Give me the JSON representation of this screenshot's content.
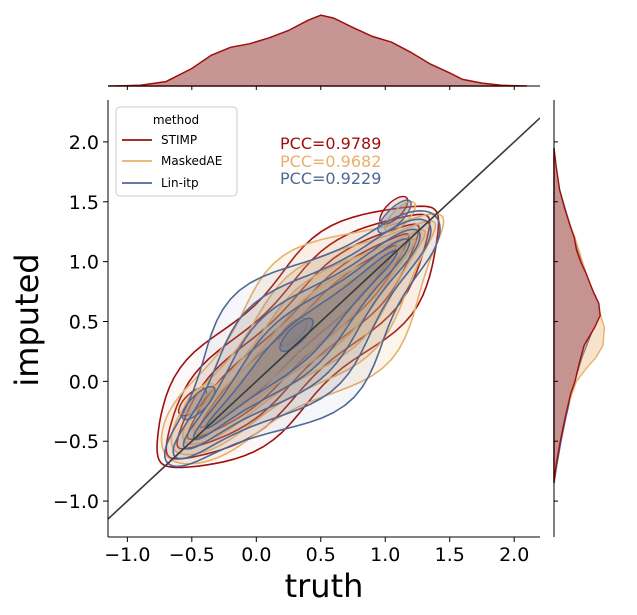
{
  "chart_data": {
    "type": "kde-joint",
    "xlabel": "truth",
    "ylabel": "imputed",
    "xlim": [
      -1.15,
      2.2
    ],
    "ylim": [
      -1.3,
      2.35
    ],
    "x_ticks": [
      -1.0,
      -0.5,
      0.0,
      0.5,
      1.0,
      1.5,
      2.0
    ],
    "x_tick_labels": [
      "−1.0",
      "−0.5",
      "0.0",
      "0.5",
      "1.0",
      "1.5",
      "2.0"
    ],
    "y_ticks": [
      -1.0,
      -0.5,
      0.0,
      0.5,
      1.0,
      1.5,
      2.0
    ],
    "y_tick_labels": [
      "−1.0",
      "−0.5",
      "0.0",
      "0.5",
      "1.0",
      "1.5",
      "2.0"
    ],
    "legend": {
      "title": "method",
      "position": "top-left",
      "entries": [
        {
          "name": "STIMP",
          "color": "#a00f0f"
        },
        {
          "name": "MaskedAE",
          "color": "#e8b06a"
        },
        {
          "name": "Lin-itp",
          "color": "#4f6894"
        }
      ]
    },
    "annotations": [
      {
        "text": "PCC=0.9789",
        "color": "#a00f0f"
      },
      {
        "text": "PCC=0.9682",
        "color": "#e8b06a"
      },
      {
        "text": "PCC=0.9229",
        "color": "#4f6894"
      }
    ],
    "reference_line": {
      "slope": 1,
      "intercept": 0,
      "color": "#3a3a3a"
    },
    "series": [
      {
        "name": "STIMP",
        "color": "#a00f0f",
        "fill": "#c4908e",
        "center_start": [
          -0.65,
          -0.6
        ],
        "center_end": [
          1.3,
          1.35
        ],
        "marginal_x": [
          [
            -1.15,
            0.0
          ],
          [
            -0.9,
            0.01
          ],
          [
            -0.7,
            0.06
          ],
          [
            -0.5,
            0.24
          ],
          [
            -0.35,
            0.42
          ],
          [
            -0.2,
            0.53
          ],
          [
            -0.05,
            0.58
          ],
          [
            0.1,
            0.66
          ],
          [
            0.25,
            0.76
          ],
          [
            0.4,
            0.9
          ],
          [
            0.5,
            0.97
          ],
          [
            0.6,
            0.93
          ],
          [
            0.75,
            0.8
          ],
          [
            0.9,
            0.68
          ],
          [
            1.05,
            0.6
          ],
          [
            1.2,
            0.46
          ],
          [
            1.35,
            0.3
          ],
          [
            1.5,
            0.18
          ],
          [
            1.6,
            0.09
          ],
          [
            1.75,
            0.04
          ],
          [
            1.9,
            0.01
          ],
          [
            2.1,
            0.0
          ]
        ],
        "marginal_y": [
          [
            -0.85,
            0.0
          ],
          [
            -0.7,
            0.03
          ],
          [
            -0.5,
            0.09
          ],
          [
            -0.3,
            0.16
          ],
          [
            -0.1,
            0.24
          ],
          [
            0.0,
            0.3
          ],
          [
            0.15,
            0.36
          ],
          [
            0.3,
            0.43
          ],
          [
            0.45,
            0.58
          ],
          [
            0.55,
            0.66
          ],
          [
            0.65,
            0.64
          ],
          [
            0.75,
            0.56
          ],
          [
            0.9,
            0.46
          ],
          [
            1.0,
            0.38
          ],
          [
            1.1,
            0.32
          ],
          [
            1.2,
            0.29
          ],
          [
            1.3,
            0.23
          ],
          [
            1.45,
            0.15
          ],
          [
            1.6,
            0.08
          ],
          [
            1.8,
            0.03
          ],
          [
            1.95,
            0.0
          ]
        ]
      },
      {
        "name": "MaskedAE",
        "color": "#e8b06a",
        "fill": "#e8b06a",
        "center_start": [
          -0.6,
          -0.55
        ],
        "center_end": [
          1.35,
          1.3
        ],
        "marginal_x": [],
        "marginal_y": [
          [
            -0.8,
            0.0
          ],
          [
            -0.6,
            0.05
          ],
          [
            -0.4,
            0.12
          ],
          [
            -0.2,
            0.2
          ],
          [
            0.0,
            0.32
          ],
          [
            0.1,
            0.45
          ],
          [
            0.2,
            0.6
          ],
          [
            0.3,
            0.7
          ],
          [
            0.45,
            0.72
          ],
          [
            0.6,
            0.64
          ],
          [
            0.75,
            0.55
          ],
          [
            0.9,
            0.46
          ],
          [
            1.05,
            0.38
          ],
          [
            1.2,
            0.3
          ],
          [
            1.35,
            0.2
          ],
          [
            1.5,
            0.12
          ],
          [
            1.7,
            0.04
          ],
          [
            1.9,
            0.0
          ]
        ]
      },
      {
        "name": "Lin-itp",
        "color": "#4f6894",
        "fill": "#4f6894",
        "center_start": [
          -0.6,
          -0.6
        ],
        "center_end": [
          1.3,
          1.3
        ],
        "marginal_x": [],
        "marginal_y": [
          [
            -0.85,
            0.0
          ],
          [
            -0.7,
            0.04
          ],
          [
            -0.5,
            0.1
          ],
          [
            -0.3,
            0.17
          ],
          [
            -0.1,
            0.25
          ],
          [
            0.05,
            0.32
          ],
          [
            0.2,
            0.4
          ],
          [
            0.35,
            0.5
          ],
          [
            0.5,
            0.6
          ],
          [
            0.6,
            0.64
          ],
          [
            0.7,
            0.6
          ],
          [
            0.8,
            0.52
          ],
          [
            0.95,
            0.43
          ],
          [
            1.1,
            0.34
          ],
          [
            1.25,
            0.26
          ],
          [
            1.4,
            0.18
          ],
          [
            1.6,
            0.08
          ],
          [
            1.8,
            0.02
          ],
          [
            1.95,
            0.0
          ]
        ]
      }
    ]
  }
}
